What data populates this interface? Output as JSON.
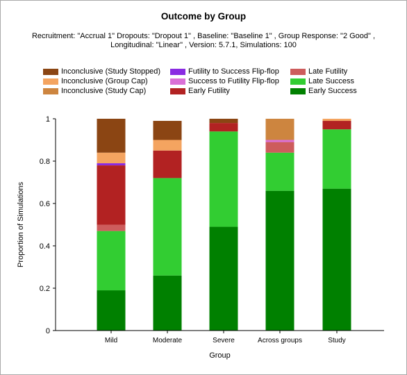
{
  "chart_data": {
    "type": "bar",
    "stacked": true,
    "title": "Outcome by Group",
    "subtitle": "Recruitment: \"Accrual 1\" Dropouts: \"Dropout 1\" , Baseline: \"Baseline 1\" , Group Response: \"2 Good\" ,\nLongitudinal: \"Linear\" , Version: 5.7.1, Simulations: 100",
    "xlabel": "Group",
    "ylabel": "Proportion of Simulations",
    "ylim": [
      0,
      1
    ],
    "yticks": [
      "0",
      "0.2",
      "0.4",
      "0.6",
      "0.8",
      "1"
    ],
    "categories": [
      "Mild",
      "Moderate",
      "Severe",
      "Across groups",
      "Study"
    ],
    "legend_position": "top",
    "series": [
      {
        "name": "Early Success",
        "color": "#008000",
        "values": [
          0.19,
          0.26,
          0.49,
          0.66,
          0.67
        ]
      },
      {
        "name": "Late Success",
        "color": "#32cd32",
        "values": [
          0.28,
          0.46,
          0.45,
          0.18,
          0.28
        ]
      },
      {
        "name": "Late Futility",
        "color": "#cd5c5c",
        "values": [
          0.03,
          0.0,
          0.0,
          0.05,
          0.0
        ]
      },
      {
        "name": "Early Futility",
        "color": "#b22222",
        "values": [
          0.28,
          0.13,
          0.04,
          0.0,
          0.04
        ]
      },
      {
        "name": "Success to Futility Flip-flop",
        "color": "#da70d6",
        "values": [
          0.0,
          0.0,
          0.0,
          0.01,
          0.0
        ]
      },
      {
        "name": "Futility to Success Flip-flop",
        "color": "#8a2be2",
        "values": [
          0.01,
          0.0,
          0.0,
          0.0,
          0.0
        ]
      },
      {
        "name": "Inconclusive (Study Cap)",
        "color": "#cd853f",
        "values": [
          0.0,
          0.0,
          0.0,
          0.1,
          0.0
        ]
      },
      {
        "name": "Inconclusive (Group Cap)",
        "color": "#f4a460",
        "values": [
          0.05,
          0.05,
          0.0,
          0.0,
          0.01
        ]
      },
      {
        "name": "Inconclusive (Study Stopped)",
        "color": "#8b4513",
        "values": [
          0.16,
          0.09,
          0.02,
          0.0,
          0.0
        ]
      }
    ],
    "legend_order": [
      "Inconclusive (Study Stopped)",
      "Futility to Success Flip-flop",
      "Late Futility",
      "Inconclusive (Group Cap)",
      "Success to Futility Flip-flop",
      "Late Success",
      "Inconclusive (Study Cap)",
      "Early Futility",
      "Early Success"
    ],
    "gridlines": false
  }
}
